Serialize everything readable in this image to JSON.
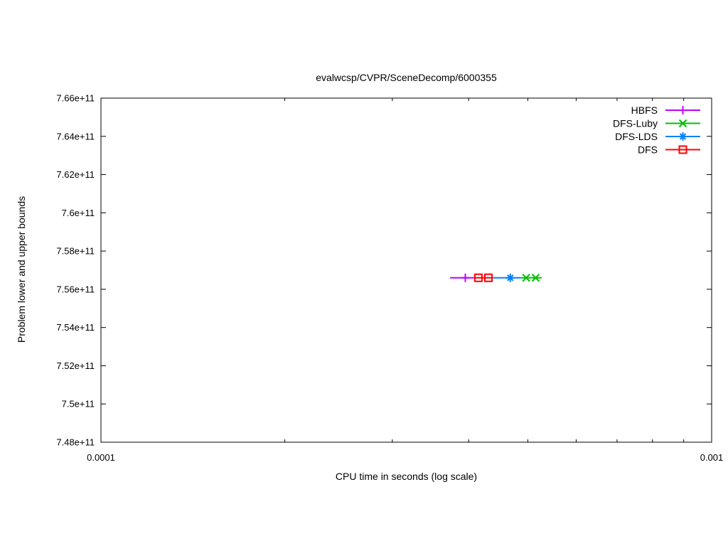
{
  "page": {
    "background": "#ffffff"
  },
  "chart_data": {
    "type": "line",
    "title": "evalwcsp/CVPR/SceneDecomp/6000355",
    "xlabel": "CPU time in seconds (log scale)",
    "ylabel": "Problem lower and upper bounds",
    "x_scale": "log",
    "xlim": [
      0.0001,
      0.001
    ],
    "ylim": [
      748000000000.0,
      766000000000.0
    ],
    "grid": false,
    "legend_position": "top-right-inside",
    "x_ticks": [
      {
        "value": 0.0001,
        "label": "0.0001"
      },
      {
        "value": 0.001,
        "label": "0.001"
      }
    ],
    "x_minor_ticks": [
      0.0002,
      0.0003,
      0.0004,
      0.0005,
      0.0006,
      0.0007,
      0.0008,
      0.0009
    ],
    "y_ticks": [
      {
        "value": 748000000000.0,
        "label": "7.48e+11"
      },
      {
        "value": 750000000000.0,
        "label": "7.5e+11"
      },
      {
        "value": 752000000000.0,
        "label": "7.52e+11"
      },
      {
        "value": 754000000000.0,
        "label": "7.54e+11"
      },
      {
        "value": 756000000000.0,
        "label": "7.56e+11"
      },
      {
        "value": 758000000000.0,
        "label": "7.58e+11"
      },
      {
        "value": 760000000000.0,
        "label": "7.6e+11"
      },
      {
        "value": 762000000000.0,
        "label": "7.62e+11"
      },
      {
        "value": 764000000000.0,
        "label": "7.64e+11"
      },
      {
        "value": 766000000000.0,
        "label": "7.66e+11"
      }
    ],
    "series": [
      {
        "name": "HBFS",
        "color": "#c000ff",
        "marker": "plus",
        "y": 756600000000.0,
        "line_x": [
          0.000373,
          0.000409
        ],
        "points_x": [
          0.000395
        ]
      },
      {
        "name": "DFS-Luby",
        "color": "#00c000",
        "marker": "cross",
        "y": 756600000000.0,
        "line_x": [
          0.000487,
          0.000527
        ],
        "points_x": [
          0.000497,
          0.000515
        ]
      },
      {
        "name": "DFS-LDS",
        "color": "#0080ff",
        "marker": "star",
        "y": 756600000000.0,
        "line_x": [
          0.000437,
          0.000487
        ],
        "points_x": [
          0.000468
        ]
      },
      {
        "name": "DFS",
        "color": "#ff0000",
        "marker": "square-open",
        "y": 756600000000.0,
        "line_x": [
          0.00041,
          0.000437
        ],
        "points_x": [
          0.000415,
          0.000431
        ]
      }
    ]
  }
}
